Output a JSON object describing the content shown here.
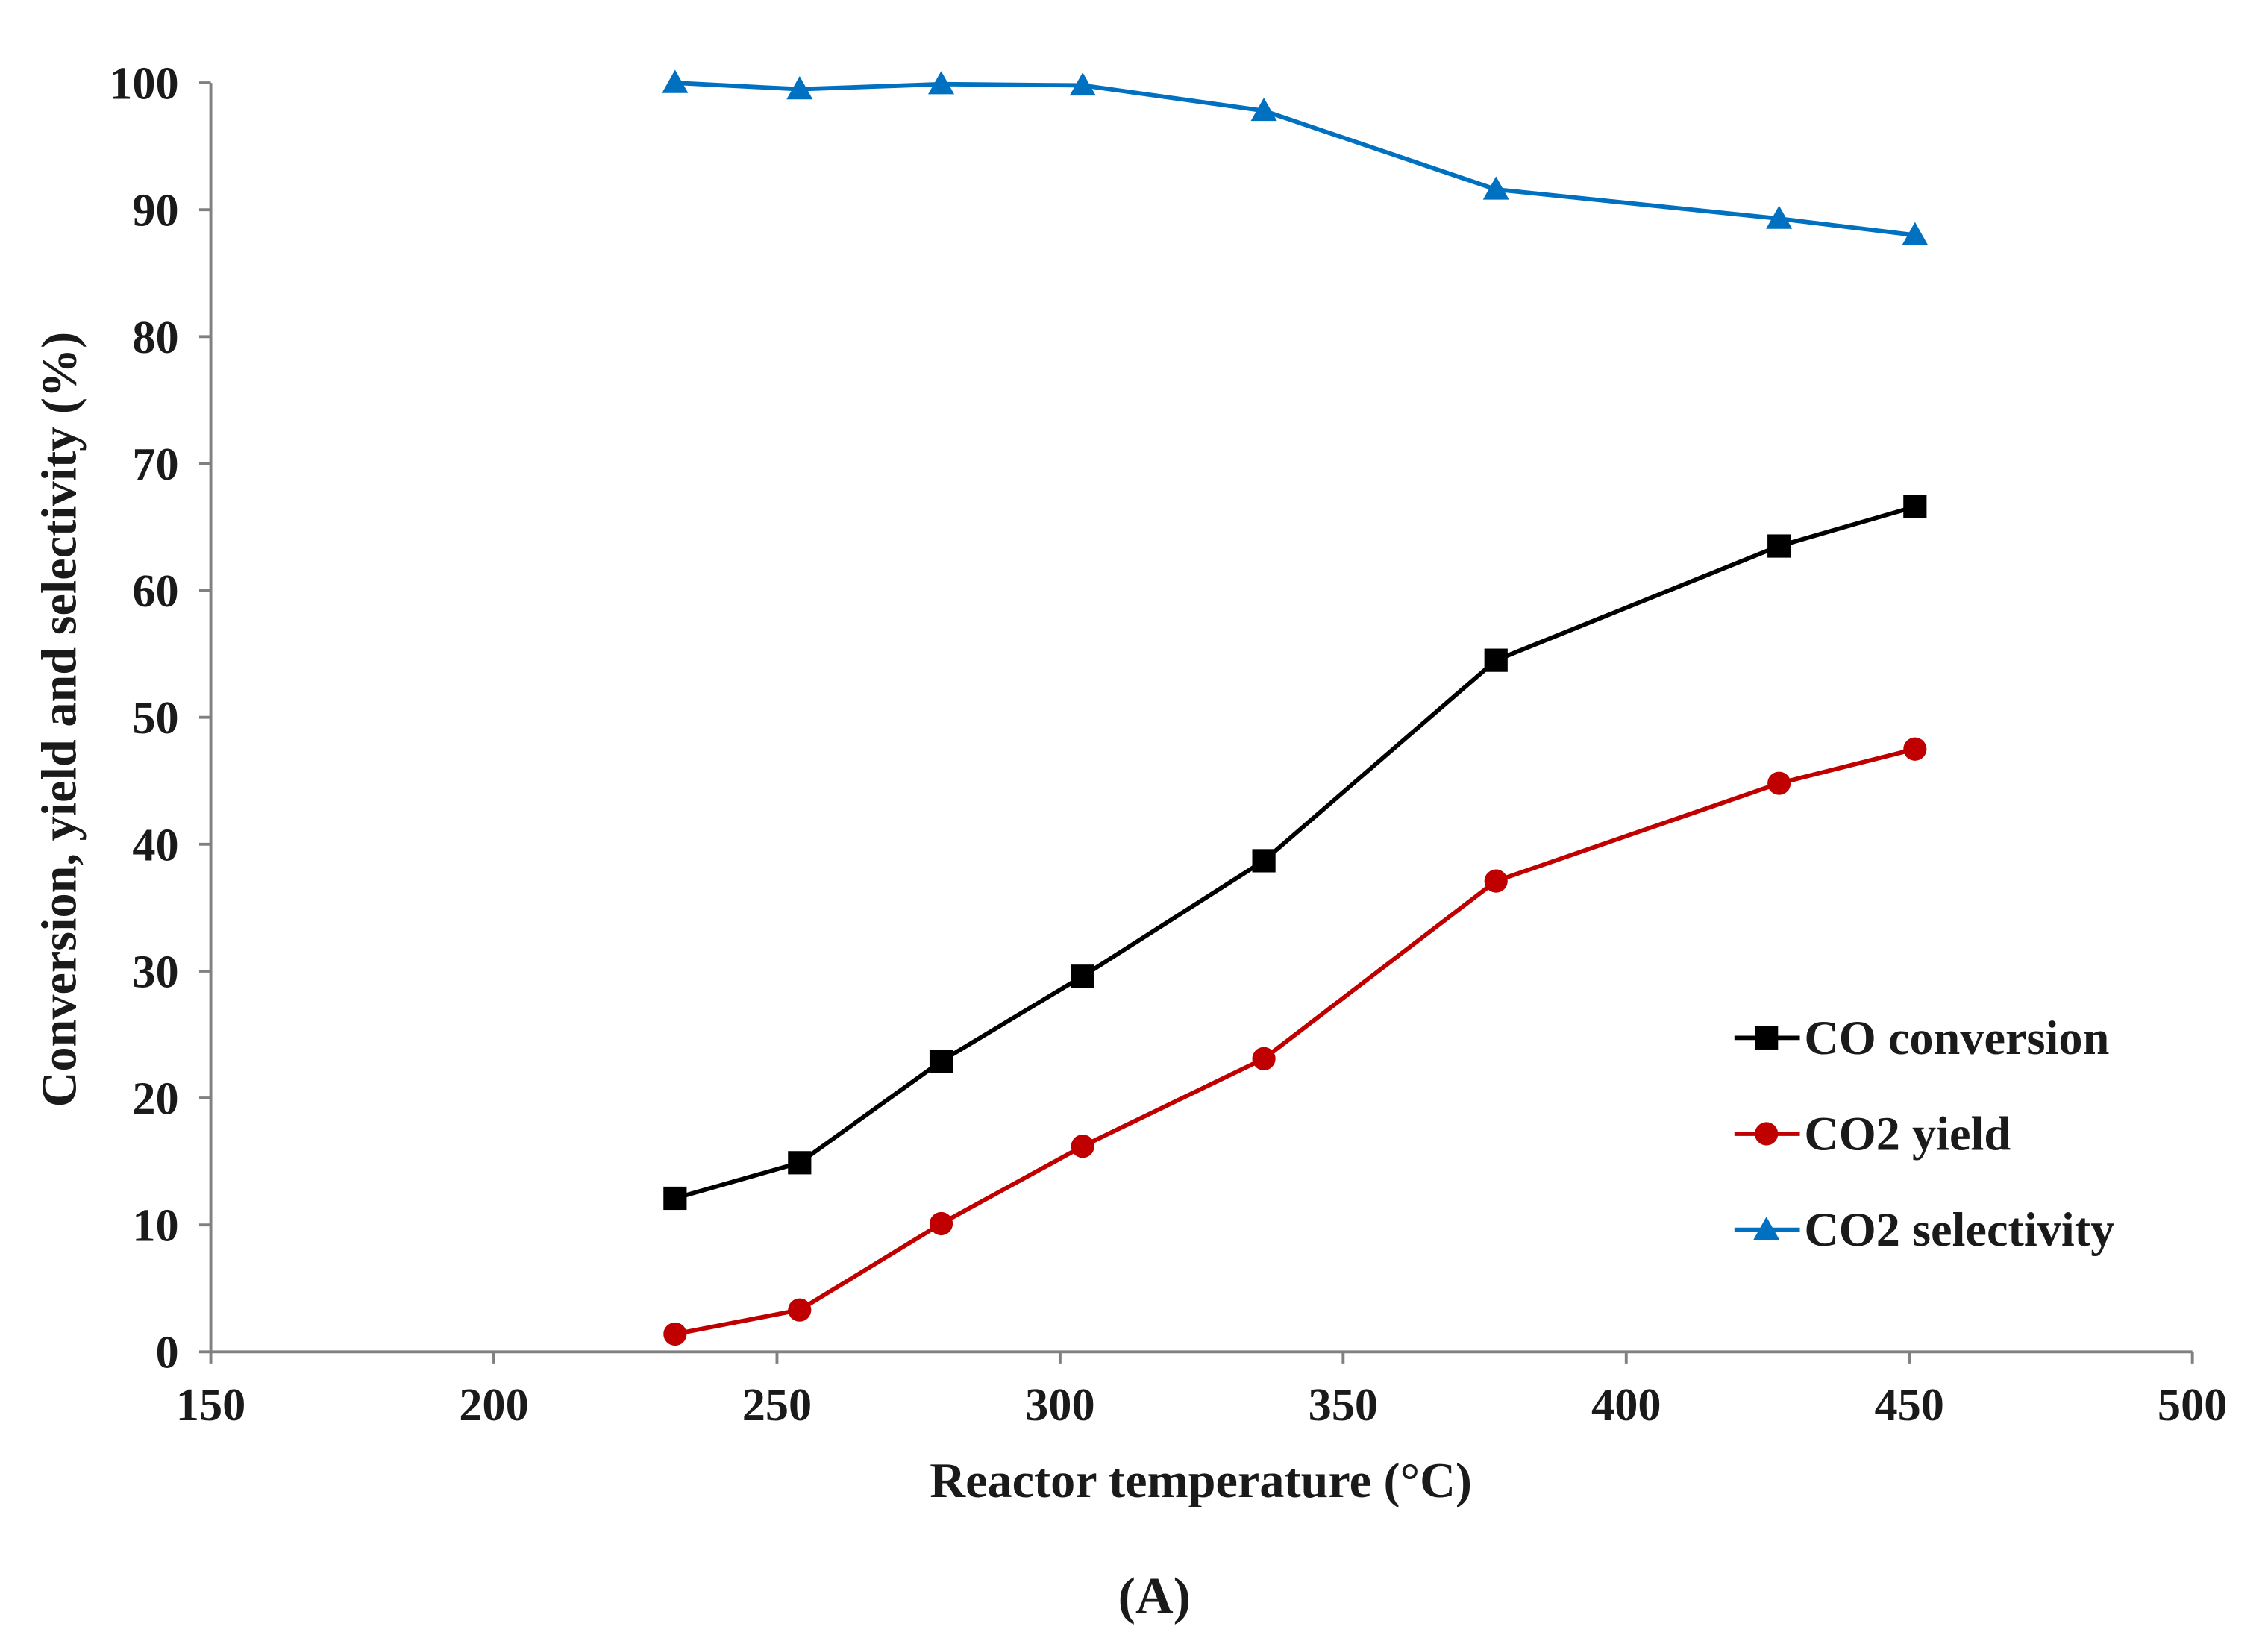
{
  "chart_data": {
    "type": "line",
    "title": "",
    "panel_label": "(A)",
    "xlabel": "Reactor temperature (°C)",
    "ylabel": "Conversion, yield and selectivity (%)",
    "xlim": [
      150,
      500
    ],
    "ylim": [
      0,
      100
    ],
    "xticks": [
      150,
      200,
      250,
      300,
      350,
      400,
      450,
      500
    ],
    "yticks": [
      0,
      10,
      20,
      30,
      40,
      50,
      60,
      70,
      80,
      90,
      100
    ],
    "grid": false,
    "legend_position": "bottom-right",
    "x": [
      232,
      254,
      279,
      304,
      336,
      377,
      427,
      451
    ],
    "series": [
      {
        "name": "CO conversion",
        "marker": "square",
        "color": "#000000",
        "values": [
          12.1,
          14.9,
          22.9,
          29.6,
          38.7,
          54.5,
          63.5,
          66.6
        ]
      },
      {
        "name": "CO2 yield",
        "marker": "circle",
        "color": "#c00000",
        "values": [
          1.4,
          3.3,
          10.1,
          16.2,
          23.1,
          37.1,
          44.8,
          47.5
        ]
      },
      {
        "name": "CO2 selectivity",
        "marker": "triangle",
        "color": "#0070c0",
        "values": [
          100,
          99.5,
          99.9,
          99.8,
          97.8,
          91.6,
          89.3,
          88.0
        ]
      }
    ]
  }
}
